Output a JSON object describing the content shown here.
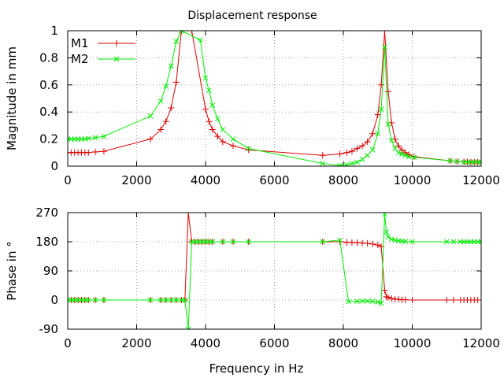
{
  "colors": {
    "M1": "#dd0000",
    "M2": "#00ee00",
    "grid": "#a0a0a0"
  },
  "chart_data": [
    {
      "type": "line",
      "title": "Displacement response",
      "xlabel": "",
      "ylabel": "Magnitude in mm",
      "xlim": [
        0,
        12000
      ],
      "ylim": [
        0,
        1
      ],
      "x_ticks": [
        "0",
        "2000",
        "4000",
        "6000",
        "8000",
        "10000",
        "12000"
      ],
      "y_ticks": [
        "0",
        "0.2",
        "0.4",
        "0.6",
        "0.8",
        "1"
      ],
      "x_tick_values": [
        0,
        2000,
        4000,
        6000,
        8000,
        10000,
        12000
      ],
      "y_tick_values": [
        0,
        0.2,
        0.4,
        0.6,
        0.8,
        1
      ],
      "grid": true,
      "legend_position": "top-left",
      "series": [
        {
          "name": "M1",
          "x": [
            0,
            100,
            200,
            300,
            400,
            500,
            600,
            800,
            1050,
            2400,
            2700,
            2850,
            3000,
            3150,
            3300,
            3600,
            4000,
            4100,
            4200,
            4350,
            4500,
            4800,
            5250,
            7400,
            7900,
            8100,
            8250,
            8400,
            8550,
            8700,
            8850,
            9000,
            9100,
            9200,
            9300,
            9400,
            9500,
            9600,
            9700,
            9800,
            9900,
            10050,
            11100,
            11300,
            11500,
            11600,
            11700,
            11800,
            11900,
            12000
          ],
          "y": [
            0.1,
            0.1,
            0.1,
            0.1,
            0.1,
            0.1,
            0.1,
            0.105,
            0.11,
            0.2,
            0.27,
            0.33,
            0.43,
            0.62,
            1.0,
            1.0,
            0.42,
            0.33,
            0.27,
            0.22,
            0.18,
            0.15,
            0.12,
            0.08,
            0.09,
            0.1,
            0.11,
            0.13,
            0.15,
            0.18,
            0.24,
            0.38,
            0.6,
            1.0,
            0.55,
            0.32,
            0.2,
            0.15,
            0.12,
            0.1,
            0.085,
            0.07,
            0.04,
            0.035,
            0.033,
            0.032,
            0.03,
            0.03,
            0.03,
            0.03
          ]
        },
        {
          "name": "M2",
          "x": [
            0,
            100,
            200,
            300,
            400,
            500,
            600,
            800,
            1050,
            2400,
            2700,
            2850,
            3000,
            3150,
            3300,
            3850,
            4000,
            4100,
            4200,
            4350,
            4500,
            4800,
            5250,
            7400,
            7900,
            8100,
            8250,
            8400,
            8550,
            8700,
            8850,
            9000,
            9100,
            9200,
            9300,
            9400,
            9500,
            9600,
            9700,
            9800,
            9900,
            10050,
            11100,
            11300,
            11500,
            11600,
            11700,
            11800,
            11900,
            12000
          ],
          "y": [
            0.2,
            0.2,
            0.2,
            0.2,
            0.2,
            0.2,
            0.205,
            0.21,
            0.22,
            0.37,
            0.48,
            0.59,
            0.74,
            0.92,
            1.0,
            0.93,
            0.65,
            0.56,
            0.45,
            0.35,
            0.27,
            0.2,
            0.13,
            0.02,
            0.005,
            0.01,
            0.02,
            0.03,
            0.05,
            0.08,
            0.12,
            0.24,
            0.42,
            0.88,
            0.31,
            0.19,
            0.13,
            0.1,
            0.09,
            0.08,
            0.07,
            0.065,
            0.04,
            0.035,
            0.03,
            0.03,
            0.03,
            0.03,
            0.03,
            0.03
          ]
        }
      ]
    },
    {
      "type": "line",
      "title": "",
      "xlabel": "Frequency in Hz",
      "ylabel": "Phase in °",
      "xlim": [
        0,
        12000
      ],
      "ylim": [
        -90,
        270
      ],
      "x_ticks": [
        "0",
        "2000",
        "4000",
        "6000",
        "8000",
        "10000",
        "12000"
      ],
      "y_ticks": [
        "-90",
        "0",
        "90",
        "180",
        "270"
      ],
      "x_tick_values": [
        0,
        2000,
        4000,
        6000,
        8000,
        10000,
        12000
      ],
      "y_tick_values": [
        -90,
        0,
        90,
        180,
        270
      ],
      "grid": true,
      "series": [
        {
          "name": "M1",
          "x": [
            0,
            100,
            200,
            300,
            400,
            500,
            600,
            800,
            1050,
            2400,
            2700,
            2850,
            3000,
            3150,
            3300,
            3400,
            3500,
            3600,
            3700,
            3800,
            3900,
            4000,
            4100,
            4200,
            4500,
            4800,
            5250,
            7400,
            7900,
            8100,
            8250,
            8400,
            8550,
            8700,
            8850,
            9000,
            9100,
            9200,
            9250,
            9300,
            9400,
            9500,
            9600,
            9700,
            9800,
            10000,
            11000,
            11200,
            11400,
            11500,
            11600,
            11700,
            11800,
            11900,
            12000
          ],
          "y": [
            0,
            0,
            0,
            0,
            0,
            0,
            0,
            0,
            0,
            0,
            0,
            0,
            0,
            0,
            0,
            0,
            270,
            180,
            180,
            180,
            180,
            180,
            180,
            180,
            180,
            180,
            180,
            180,
            180,
            178,
            178,
            177,
            176,
            175,
            173,
            170,
            165,
            30,
            10,
            8,
            5,
            3,
            2,
            1,
            1,
            0,
            0,
            0,
            0,
            0,
            0,
            0,
            0,
            0,
            0
          ]
        },
        {
          "name": "M2",
          "x": [
            0,
            100,
            200,
            300,
            400,
            500,
            600,
            800,
            1050,
            2400,
            2700,
            2850,
            3000,
            3150,
            3300,
            3400,
            3500,
            3600,
            3700,
            3800,
            3900,
            4000,
            4100,
            4200,
            4500,
            4800,
            5250,
            7400,
            7900,
            8150,
            8400,
            8550,
            8700,
            8850,
            9000,
            9100,
            9200,
            9250,
            9300,
            9400,
            9500,
            9600,
            9700,
            9800,
            10000,
            11000,
            11200,
            11400,
            11500,
            11600,
            11700,
            11800,
            11900,
            12000
          ],
          "y": [
            0,
            0,
            0,
            0,
            0,
            0,
            0,
            0,
            0,
            0,
            0,
            0,
            0,
            0,
            0,
            0,
            -90,
            180,
            180,
            180,
            180,
            180,
            180,
            180,
            180,
            180,
            180,
            180,
            185,
            -5,
            -4,
            -3,
            -3,
            -4,
            -6,
            -10,
            265,
            210,
            195,
            188,
            185,
            183,
            182,
            181,
            180,
            180,
            180,
            180,
            180,
            180,
            180,
            180,
            180,
            180
          ]
        }
      ]
    }
  ]
}
